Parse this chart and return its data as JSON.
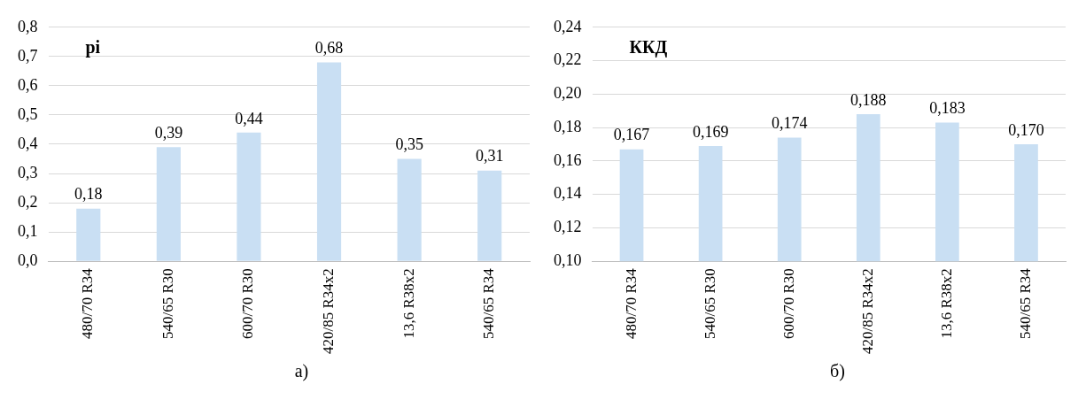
{
  "chart_data": [
    {
      "type": "bar",
      "title": "pi",
      "categories": [
        "480/70 R34",
        "540/65 R30",
        "600/70 R30",
        "420/85 R34x2",
        "13,6 R38x2",
        "540/65 R34"
      ],
      "values": [
        0.18,
        0.39,
        0.44,
        0.68,
        0.35,
        0.31
      ],
      "value_labels": [
        "0,18",
        "0,39",
        "0,44",
        "0,68",
        "0,35",
        "0,31"
      ],
      "color": "#c9dff3",
      "ylim": [
        0,
        0.8
      ],
      "yticks": [
        {
          "value": 0,
          "label": "0,0"
        },
        {
          "value": 0.1,
          "label": "0,1"
        },
        {
          "value": 0.2,
          "label": "0,2"
        },
        {
          "value": 0.3,
          "label": "0,3"
        },
        {
          "value": 0.4,
          "label": "0,4"
        },
        {
          "value": 0.5,
          "label": "0,5"
        },
        {
          "value": 0.6,
          "label": "0,6"
        },
        {
          "value": 0.7,
          "label": "0,7"
        },
        {
          "value": 0.8,
          "label": "0,8"
        }
      ],
      "grid": "y",
      "legend": false,
      "annotations": [
        "а)"
      ]
    },
    {
      "type": "bar",
      "title": "ККД",
      "categories": [
        "480/70 R34",
        "540/65 R30",
        "600/70 R30",
        "420/85 R34x2",
        "13,6 R38x2",
        "540/65 R34"
      ],
      "values": [
        0.167,
        0.169,
        0.174,
        0.188,
        0.183,
        0.17
      ],
      "value_labels": [
        "0,167",
        "0,169",
        "0,174",
        "0,188",
        "0,183",
        "0,170"
      ],
      "color": "#c9dff3",
      "ylim": [
        0.1,
        0.24
      ],
      "yticks": [
        {
          "value": 0.1,
          "label": "0,10"
        },
        {
          "value": 0.12,
          "label": "0,12"
        },
        {
          "value": 0.14,
          "label": "0,14"
        },
        {
          "value": 0.16,
          "label": "0,16"
        },
        {
          "value": 0.18,
          "label": "0,18"
        },
        {
          "value": 0.2,
          "label": "0,20"
        },
        {
          "value": 0.22,
          "label": "0,22"
        },
        {
          "value": 0.24,
          "label": "0,24"
        }
      ],
      "grid": "y",
      "legend": false,
      "annotations": [
        "б)"
      ]
    }
  ]
}
